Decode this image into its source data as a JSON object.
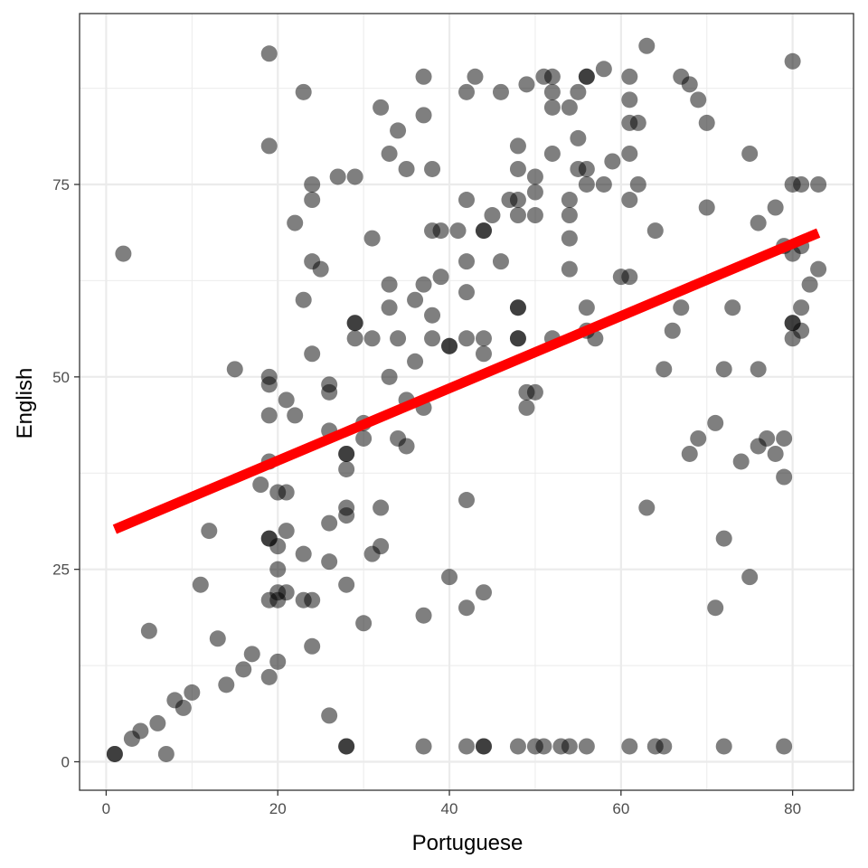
{
  "chart_data": {
    "type": "scatter",
    "xlabel": "Portuguese",
    "ylabel": "English",
    "xlim": [
      -3.1,
      87.1
    ],
    "ylim": [
      -3.7,
      97.2
    ],
    "x_ticks": [
      0,
      20,
      40,
      60,
      80
    ],
    "y_ticks": [
      0,
      25,
      50,
      75
    ],
    "x_tick_labels": [
      "0",
      "20",
      "40",
      "60",
      "80"
    ],
    "y_tick_labels": [
      "0",
      "25",
      "50",
      "75"
    ],
    "grid": true,
    "legend": "none",
    "point_color": "#000000",
    "point_opacity": 0.5,
    "fit_line": {
      "color": "#ff0000",
      "from": [
        1,
        30.2
      ],
      "to": [
        83,
        68.7
      ]
    },
    "points": [
      [
        1,
        1
      ],
      [
        1,
        1
      ],
      [
        2,
        66
      ],
      [
        3,
        3
      ],
      [
        4,
        4
      ],
      [
        5,
        17
      ],
      [
        6,
        5
      ],
      [
        7,
        1
      ],
      [
        8,
        8
      ],
      [
        9,
        7
      ],
      [
        10,
        9
      ],
      [
        11,
        23
      ],
      [
        12,
        30
      ],
      [
        13,
        16
      ],
      [
        14,
        10
      ],
      [
        15,
        51
      ],
      [
        16,
        12
      ],
      [
        17,
        14
      ],
      [
        18,
        36
      ],
      [
        19,
        92
      ],
      [
        19,
        80
      ],
      [
        19,
        50
      ],
      [
        19,
        49
      ],
      [
        19,
        45
      ],
      [
        19,
        39
      ],
      [
        19,
        29
      ],
      [
        19,
        29
      ],
      [
        19,
        21
      ],
      [
        19,
        11
      ],
      [
        20,
        35
      ],
      [
        20,
        28
      ],
      [
        20,
        25
      ],
      [
        20,
        22
      ],
      [
        20,
        21
      ],
      [
        20,
        13
      ],
      [
        21,
        47
      ],
      [
        21,
        35
      ],
      [
        21,
        30
      ],
      [
        21,
        22
      ],
      [
        22,
        70
      ],
      [
        22,
        45
      ],
      [
        23,
        87
      ],
      [
        23,
        60
      ],
      [
        23,
        27
      ],
      [
        23,
        21
      ],
      [
        24,
        75
      ],
      [
        24,
        73
      ],
      [
        24,
        65
      ],
      [
        24,
        53
      ],
      [
        24,
        21
      ],
      [
        24,
        15
      ],
      [
        25,
        64
      ],
      [
        26,
        49
      ],
      [
        26,
        48
      ],
      [
        26,
        43
      ],
      [
        26,
        31
      ],
      [
        26,
        26
      ],
      [
        26,
        6
      ],
      [
        27,
        76
      ],
      [
        28,
        40
      ],
      [
        28,
        40
      ],
      [
        28,
        38
      ],
      [
        28,
        33
      ],
      [
        28,
        32
      ],
      [
        28,
        23
      ],
      [
        28,
        2
      ],
      [
        28,
        2
      ],
      [
        29,
        76
      ],
      [
        29,
        57
      ],
      [
        29,
        57
      ],
      [
        29,
        55
      ],
      [
        30,
        44
      ],
      [
        30,
        42
      ],
      [
        30,
        18
      ],
      [
        31,
        68
      ],
      [
        31,
        55
      ],
      [
        31,
        27
      ],
      [
        32,
        85
      ],
      [
        32,
        33
      ],
      [
        32,
        28
      ],
      [
        33,
        79
      ],
      [
        33,
        62
      ],
      [
        33,
        59
      ],
      [
        33,
        50
      ],
      [
        34,
        82
      ],
      [
        34,
        55
      ],
      [
        34,
        42
      ],
      [
        35,
        77
      ],
      [
        35,
        47
      ],
      [
        35,
        41
      ],
      [
        36,
        60
      ],
      [
        36,
        52
      ],
      [
        37,
        89
      ],
      [
        37,
        84
      ],
      [
        37,
        62
      ],
      [
        37,
        46
      ],
      [
        37,
        19
      ],
      [
        37,
        2
      ],
      [
        38,
        77
      ],
      [
        38,
        69
      ],
      [
        38,
        58
      ],
      [
        38,
        55
      ],
      [
        39,
        69
      ],
      [
        39,
        63
      ],
      [
        40,
        54
      ],
      [
        40,
        54
      ],
      [
        40,
        24
      ],
      [
        41,
        69
      ],
      [
        42,
        87
      ],
      [
        42,
        73
      ],
      [
        42,
        65
      ],
      [
        42,
        61
      ],
      [
        42,
        55
      ],
      [
        42,
        34
      ],
      [
        42,
        20
      ],
      [
        42,
        2
      ],
      [
        43,
        89
      ],
      [
        44,
        69
      ],
      [
        44,
        69
      ],
      [
        44,
        55
      ],
      [
        44,
        53
      ],
      [
        44,
        22
      ],
      [
        44,
        2
      ],
      [
        44,
        2
      ],
      [
        45,
        71
      ],
      [
        46,
        87
      ],
      [
        46,
        65
      ],
      [
        47,
        73
      ],
      [
        48,
        80
      ],
      [
        48,
        77
      ],
      [
        48,
        73
      ],
      [
        48,
        71
      ],
      [
        48,
        59
      ],
      [
        48,
        59
      ],
      [
        48,
        55
      ],
      [
        48,
        55
      ],
      [
        48,
        2
      ],
      [
        49,
        88
      ],
      [
        49,
        48
      ],
      [
        49,
        46
      ],
      [
        50,
        76
      ],
      [
        50,
        74
      ],
      [
        50,
        71
      ],
      [
        50,
        48
      ],
      [
        50,
        2
      ],
      [
        51,
        89
      ],
      [
        51,
        2
      ],
      [
        52,
        89
      ],
      [
        52,
        87
      ],
      [
        52,
        85
      ],
      [
        52,
        79
      ],
      [
        52,
        55
      ],
      [
        53,
        2
      ],
      [
        54,
        85
      ],
      [
        54,
        73
      ],
      [
        54,
        71
      ],
      [
        54,
        68
      ],
      [
        54,
        64
      ],
      [
        54,
        2
      ],
      [
        55,
        87
      ],
      [
        55,
        81
      ],
      [
        55,
        77
      ],
      [
        56,
        89
      ],
      [
        56,
        89
      ],
      [
        56,
        77
      ],
      [
        56,
        75
      ],
      [
        56,
        59
      ],
      [
        56,
        56
      ],
      [
        56,
        2
      ],
      [
        57,
        55
      ],
      [
        58,
        90
      ],
      [
        58,
        75
      ],
      [
        59,
        78
      ],
      [
        60,
        63
      ],
      [
        61,
        89
      ],
      [
        61,
        86
      ],
      [
        61,
        83
      ],
      [
        61,
        79
      ],
      [
        61,
        73
      ],
      [
        61,
        63
      ],
      [
        61,
        2
      ],
      [
        62,
        83
      ],
      [
        62,
        75
      ],
      [
        63,
        93
      ],
      [
        63,
        33
      ],
      [
        64,
        69
      ],
      [
        64,
        2
      ],
      [
        65,
        51
      ],
      [
        65,
        2
      ],
      [
        66,
        56
      ],
      [
        67,
        89
      ],
      [
        67,
        59
      ],
      [
        68,
        88
      ],
      [
        68,
        40
      ],
      [
        69,
        86
      ],
      [
        69,
        42
      ],
      [
        70,
        83
      ],
      [
        70,
        72
      ],
      [
        71,
        44
      ],
      [
        71,
        20
      ],
      [
        72,
        51
      ],
      [
        72,
        29
      ],
      [
        72,
        2
      ],
      [
        73,
        59
      ],
      [
        74,
        39
      ],
      [
        75,
        79
      ],
      [
        75,
        24
      ],
      [
        76,
        70
      ],
      [
        76,
        51
      ],
      [
        76,
        41
      ],
      [
        77,
        42
      ],
      [
        78,
        72
      ],
      [
        78,
        40
      ],
      [
        79,
        67
      ],
      [
        79,
        42
      ],
      [
        79,
        37
      ],
      [
        79,
        2
      ],
      [
        80,
        91
      ],
      [
        80,
        75
      ],
      [
        80,
        66
      ],
      [
        80,
        57
      ],
      [
        80,
        57
      ],
      [
        80,
        55
      ],
      [
        81,
        75
      ],
      [
        81,
        67
      ],
      [
        81,
        59
      ],
      [
        81,
        56
      ],
      [
        82,
        62
      ],
      [
        83,
        75
      ],
      [
        83,
        64
      ]
    ]
  }
}
